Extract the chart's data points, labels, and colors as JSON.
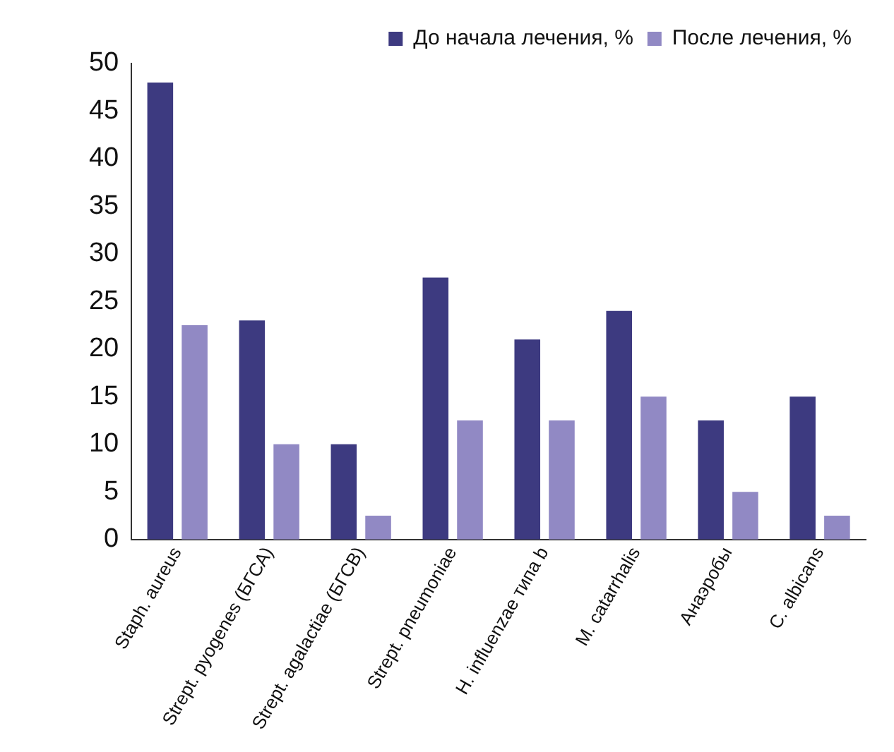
{
  "chart_data": {
    "type": "bar",
    "categories": [
      "Staph. aureus",
      "Strept. pyogenes (БГСА)",
      "Strept. agalactiae (БГСВ)",
      "Strept. pneumoniae",
      "H. influenzae типа b",
      "M. catarrhalis",
      "Анаэробы",
      "C. albicans"
    ],
    "series": [
      {
        "name": "До начала лечения, %",
        "color": "#3d3a80",
        "values": [
          48,
          23,
          10,
          27.5,
          21,
          24,
          12.5,
          15
        ]
      },
      {
        "name": "После лечения, %",
        "color": "#9189c4",
        "values": [
          22.5,
          10,
          2.5,
          12.5,
          12.5,
          15,
          5,
          2.5
        ]
      }
    ],
    "ylim": [
      0,
      50
    ],
    "yticks": [
      0,
      5,
      10,
      15,
      20,
      25,
      30,
      35,
      40,
      45,
      50
    ],
    "grid": false,
    "legend": "top right"
  }
}
